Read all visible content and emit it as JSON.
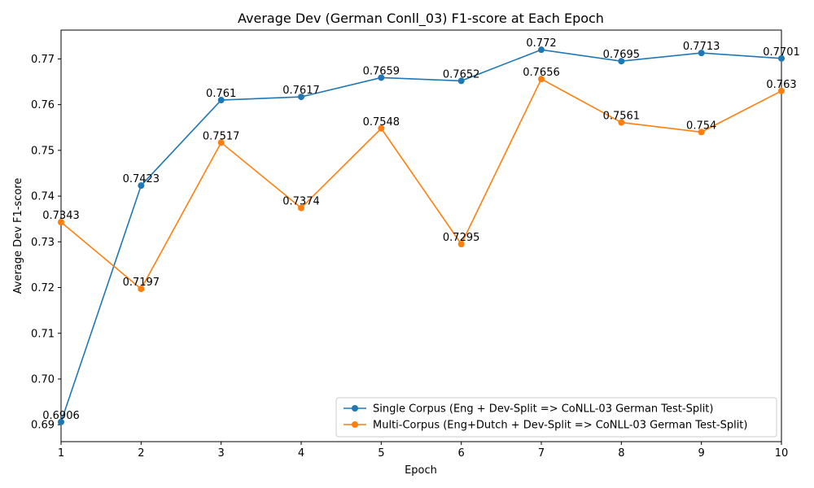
{
  "chart_data": {
    "type": "line",
    "title": "Average Dev (German Conll_03) F1-score at Each Epoch",
    "xlabel": "Epoch",
    "ylabel": "Average Dev F1-score",
    "x": [
      1,
      2,
      3,
      4,
      5,
      6,
      7,
      8,
      9,
      10
    ],
    "xlim": [
      1,
      10
    ],
    "ylim": [
      0.6863,
      0.7763
    ],
    "y_ticks": [
      0.7,
      0.71,
      0.72,
      0.73,
      0.74,
      0.75,
      0.76,
      0.77
    ],
    "y_tick_labels": [
      "0.70",
      "0.71",
      "0.72",
      "0.73",
      "0.74",
      "0.75",
      "0.76",
      "0.77"
    ],
    "extra_y_tick_label": {
      "value": 0.69,
      "label": "0.69"
    },
    "grid": false,
    "legend_position": "lower-right",
    "series": [
      {
        "name": "Single Corpus (Eng + Dev-Split => CoNLL-03 German Test-Split)",
        "color": "#1f77b4",
        "values": [
          0.6906,
          0.7423,
          0.761,
          0.7617,
          0.7659,
          0.7652,
          0.772,
          0.7695,
          0.7713,
          0.7701
        ],
        "labels": [
          "0.6906",
          "0.7423",
          "0.761",
          "0.7617",
          "0.7659",
          "0.7652",
          "0.772",
          "0.7695",
          "0.7713",
          "0.7701"
        ]
      },
      {
        "name": "Multi-Corpus (Eng+Dutch + Dev-Split => CoNLL-03 German Test-Split)",
        "color": "#ff7f0e",
        "values": [
          0.7343,
          0.7197,
          0.7517,
          0.7374,
          0.7548,
          0.7295,
          0.7656,
          0.7561,
          0.754,
          0.763
        ],
        "labels": [
          "0.7343",
          "0.7197",
          "0.7517",
          "0.7374",
          "0.7548",
          "0.7295",
          "0.7656",
          "0.7561",
          "0.754",
          "0.763"
        ]
      }
    ]
  }
}
